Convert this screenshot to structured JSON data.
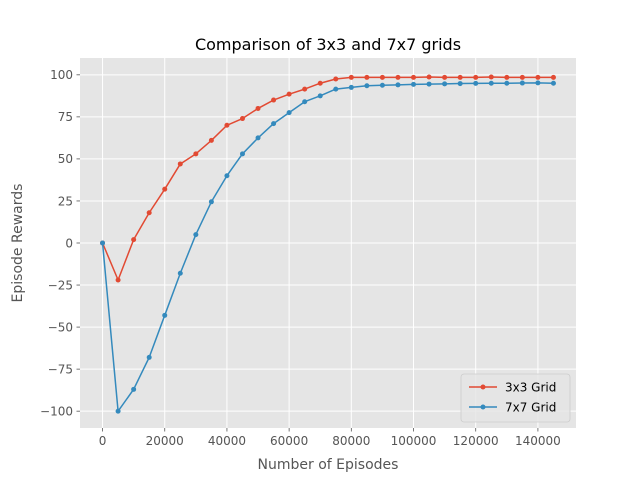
{
  "chart_data": {
    "type": "line",
    "title": "Comparison of 3x3 and 7x7 grids",
    "xlabel": "Number of Episodes",
    "ylabel": "Episode Rewards",
    "xlim": [
      -7250,
      152250
    ],
    "ylim": [
      -110,
      110
    ],
    "xticks": [
      0,
      20000,
      40000,
      60000,
      80000,
      100000,
      120000,
      140000
    ],
    "xtick_labels": [
      "0",
      "20000",
      "40000",
      "60000",
      "80000",
      "100000",
      "120000",
      "140000"
    ],
    "yticks": [
      -100,
      -75,
      -50,
      -25,
      0,
      25,
      50,
      75,
      100
    ],
    "ytick_labels": [
      "−100",
      "−75",
      "−50",
      "−25",
      "0",
      "25",
      "50",
      "75",
      "100"
    ],
    "grid": true,
    "legend_position": "lower-right",
    "x": [
      0,
      5000,
      10000,
      15000,
      20000,
      25000,
      30000,
      35000,
      40000,
      45000,
      50000,
      55000,
      60000,
      65000,
      70000,
      75000,
      80000,
      85000,
      90000,
      95000,
      100000,
      105000,
      110000,
      115000,
      120000,
      125000,
      130000,
      135000,
      140000,
      145000
    ],
    "series": [
      {
        "name": "3x3 Grid",
        "color": "#E24A33",
        "values": [
          0,
          -22,
          2,
          18,
          32,
          47,
          53,
          61,
          70,
          74,
          80,
          85,
          88.5,
          91.5,
          95,
          97.5,
          98.5,
          98.5,
          98.5,
          98.5,
          98.5,
          98.7,
          98.5,
          98.5,
          98.5,
          98.7,
          98.5,
          98.5,
          98.5,
          98.5
        ]
      },
      {
        "name": "7x7 Grid",
        "color": "#348ABD",
        "values": [
          0,
          -100,
          -87,
          -68,
          -43,
          -18,
          5,
          24.5,
          40,
          53,
          62.5,
          71,
          77.5,
          84,
          87.5,
          91.5,
          92.5,
          93.5,
          93.8,
          94,
          94.3,
          94.5,
          94.6,
          94.8,
          94.9,
          95,
          95,
          95.1,
          95.2,
          95
        ]
      }
    ]
  }
}
